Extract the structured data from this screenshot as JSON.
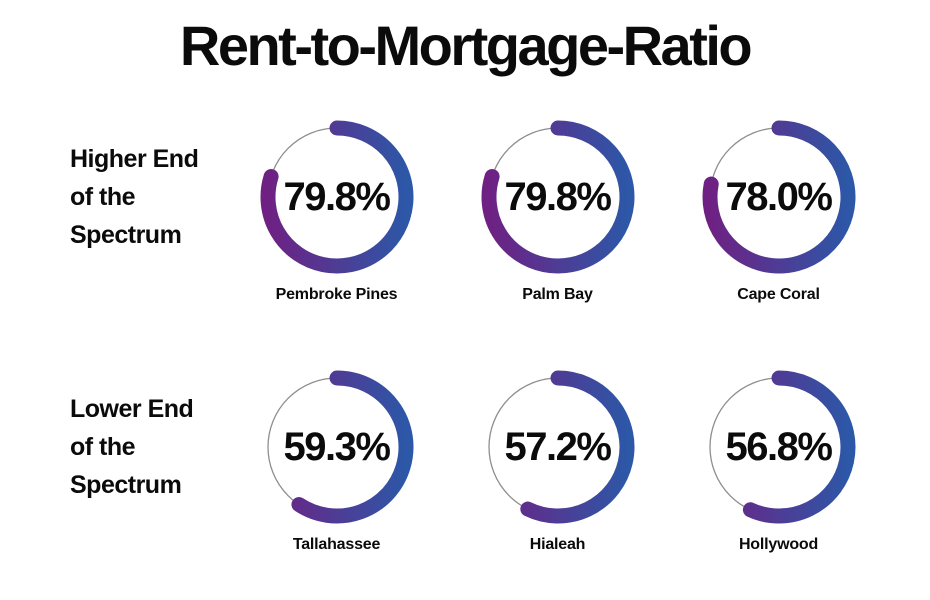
{
  "title": "Rent-to-Mortgage-Ratio",
  "colors": {
    "gradient_left_purple": "#6e2183",
    "gradient_right_blue": "#2d57a7",
    "track_gray": "#8e8e8e",
    "text_black": "#0b0b0b"
  },
  "chart_data": {
    "type": "donut-gauge-grid",
    "title": "Rent-to-Mortgage-Ratio",
    "unit": "%",
    "gauge_style": {
      "start_angle_deg": 0,
      "direction": "clockwise",
      "value_range": [
        0,
        100
      ],
      "gradient": [
        "#6e2183",
        "#2d57a7"
      ],
      "track_color": "#8e8e8e",
      "ring_stroke_px": 15,
      "linecap": "round"
    },
    "rows": [
      {
        "label": "Higher End of the Spectrum",
        "label_lines": [
          "Higher End",
          "of the",
          "Spectrum"
        ],
        "gauges": [
          {
            "city": "Pembroke Pines",
            "value": 79.8,
            "display": "79.8%"
          },
          {
            "city": "Palm Bay",
            "value": 79.8,
            "display": "79.8%"
          },
          {
            "city": "Cape Coral",
            "value": 78.0,
            "display": "78.0%"
          }
        ]
      },
      {
        "label": "Lower End of the Spectrum",
        "label_lines": [
          "Lower End",
          "of the",
          "Spectrum"
        ],
        "gauges": [
          {
            "city": "Tallahassee",
            "value": 59.3,
            "display": "59.3%"
          },
          {
            "city": "Hialeah",
            "value": 57.2,
            "display": "57.2%"
          },
          {
            "city": "Hollywood",
            "value": 56.8,
            "display": "56.8%"
          }
        ]
      }
    ]
  }
}
